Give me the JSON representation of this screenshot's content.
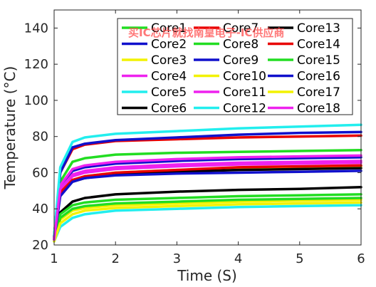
{
  "chart_data": {
    "type": "line",
    "title": "",
    "xlabel": "Time (S)",
    "ylabel": "Temperature (°C)",
    "xlim": [
      1,
      6
    ],
    "ylim": [
      20,
      150
    ],
    "xticks": [
      "1",
      "2",
      "3",
      "4",
      "5",
      "6"
    ],
    "yticks": [
      "20",
      "40",
      "60",
      "80",
      "100",
      "120",
      "140"
    ],
    "grid": false,
    "legend_position": "top-right",
    "legend_columns": 3,
    "x": [
      1.0,
      1.1,
      1.3,
      1.5,
      2.0,
      3.0,
      4.0,
      5.0,
      6.0
    ],
    "series": [
      {
        "name": "Core1",
        "color": "#22dd22",
        "values": [
          24,
          55,
          66,
          68,
          70,
          71,
          71.5,
          72,
          72.5
        ]
      },
      {
        "name": "Core2",
        "color": "#1010cc",
        "values": [
          24,
          52,
          61,
          63,
          65,
          66.5,
          67.5,
          68,
          68.5
        ]
      },
      {
        "name": "Core3",
        "color": "#f2f200",
        "values": [
          22,
          34,
          39,
          40.5,
          42,
          43,
          44,
          44.5,
          45
        ]
      },
      {
        "name": "Core4",
        "color": "#ee22ee",
        "values": [
          23,
          50,
          58,
          60,
          62,
          63.5,
          64.5,
          65,
          65.5
        ]
      },
      {
        "name": "Core5",
        "color": "#22eeee",
        "values": [
          22,
          30,
          35,
          37,
          39,
          40,
          41,
          41.5,
          42
        ]
      },
      {
        "name": "Core6",
        "color": "#000000",
        "values": [
          23,
          38,
          44,
          46,
          48,
          49.5,
          50.5,
          51,
          52
        ]
      },
      {
        "name": "Core7",
        "color": "#e80000",
        "values": [
          25,
          60,
          73,
          75.5,
          77.5,
          78.5,
          79.5,
          80,
          80.5
        ]
      },
      {
        "name": "Core8",
        "color": "#22dd22",
        "values": [
          23,
          37,
          42,
          43.5,
          45,
          46,
          47,
          47.5,
          48
        ]
      },
      {
        "name": "Core9",
        "color": "#1010cc",
        "values": [
          25,
          60,
          74,
          76,
          78,
          79.5,
          81,
          82,
          82.5
        ]
      },
      {
        "name": "Core10",
        "color": "#f2f200",
        "values": [
          23,
          49,
          56,
          58,
          60,
          61.5,
          62.5,
          63,
          63.5
        ]
      },
      {
        "name": "Core11",
        "color": "#ee22ee",
        "values": [
          24,
          53,
          62,
          64,
          66,
          67.5,
          68.5,
          69,
          69.5
        ]
      },
      {
        "name": "Core12",
        "color": "#22eeee",
        "values": [
          25,
          63,
          77,
          79.5,
          81.5,
          83,
          84.5,
          85.5,
          86.5
        ]
      },
      {
        "name": "Core13",
        "color": "#000000",
        "values": [
          23,
          48,
          55,
          57,
          59,
          60.5,
          61.5,
          62,
          62.5
        ]
      },
      {
        "name": "Core14",
        "color": "#e80000",
        "values": [
          23,
          49,
          56,
          58,
          60,
          61.5,
          63,
          63.5,
          64
        ]
      },
      {
        "name": "Core15",
        "color": "#22dd22",
        "values": [
          23,
          35,
          40,
          41.5,
          43,
          44,
          45,
          45.5,
          46
        ]
      },
      {
        "name": "Core16",
        "color": "#1010cc",
        "values": [
          23,
          47,
          55,
          57,
          58.5,
          59.5,
          60,
          60.5,
          61
        ]
      },
      {
        "name": "Core17",
        "color": "#f2f200",
        "values": [
          22,
          32,
          37,
          39,
          40.5,
          41.5,
          42.5,
          43,
          43.5
        ]
      },
      {
        "name": "Core18",
        "color": "#ee22ee",
        "values": [
          23,
          51,
          59,
          61,
          63,
          64.5,
          65.5,
          66,
          66.5
        ]
      }
    ]
  },
  "watermark": {
    "text": "买IC芯片就找南皇电子-IC供应商"
  }
}
